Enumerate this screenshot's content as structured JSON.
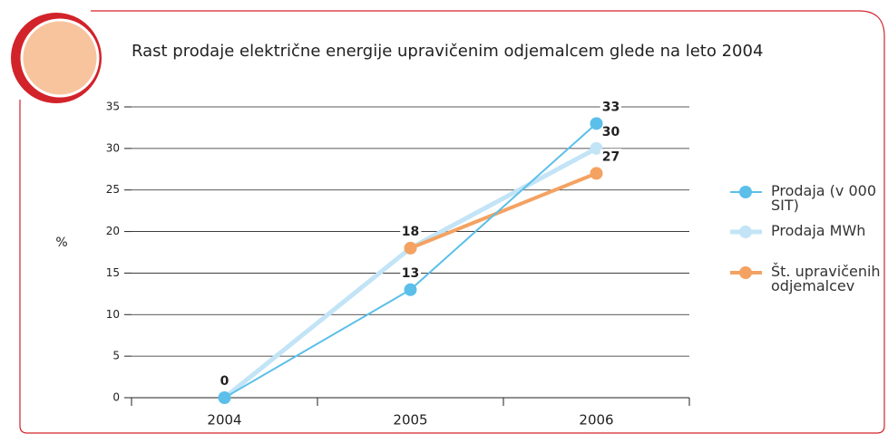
{
  "chart_data": {
    "type": "line",
    "title": "Rast prodaje električne energije upravičenim odjemalcem glede na leto 2004",
    "y_label": "%",
    "categories": [
      "2004",
      "2005",
      "2006"
    ],
    "series": [
      {
        "name": "Prodaja (v 000 SIT)",
        "color": "#5bbfe9",
        "values": [
          0,
          13,
          33
        ]
      },
      {
        "name": "Prodaja MWh",
        "color": "#c2e4f6",
        "values": [
          0,
          18,
          30
        ]
      },
      {
        "name": "Št. upravičenih odjemalcev",
        "color": "#f4a262",
        "values": [
          null,
          18,
          27
        ]
      }
    ],
    "ylim": [
      0,
      35
    ],
    "yticks": [
      0,
      5,
      10,
      15,
      20,
      25,
      30,
      35
    ],
    "grid": true,
    "legend": "right"
  }
}
